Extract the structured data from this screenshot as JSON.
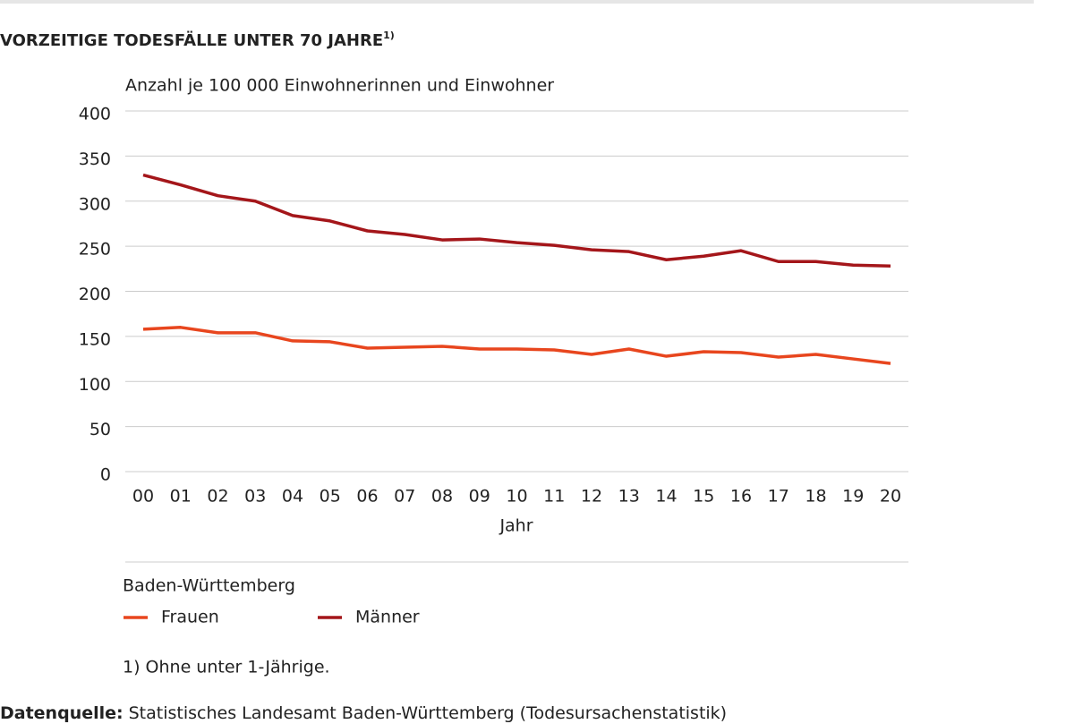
{
  "chart_data": {
    "type": "line",
    "title": "VORZEITIGE TODESFÄLLE UNTER 70 JAHRE",
    "title_note": "1)",
    "y_label": "Anzahl je 100 000 Einwohnerinnen und Einwohner",
    "x_label": "Jahr",
    "categories": [
      "00",
      "01",
      "02",
      "03",
      "04",
      "05",
      "06",
      "07",
      "08",
      "09",
      "10",
      "11",
      "12",
      "13",
      "14",
      "15",
      "16",
      "17",
      "18",
      "19",
      "20"
    ],
    "series": [
      {
        "name": "Frauen",
        "color": "#e8461e",
        "values": [
          158,
          160,
          154,
          154,
          145,
          144,
          137,
          138,
          139,
          136,
          136,
          135,
          130,
          136,
          128,
          133,
          132,
          127,
          130,
          125,
          120
        ]
      },
      {
        "name": "Männer",
        "color": "#a4161a",
        "values": [
          329,
          318,
          306,
          300,
          284,
          278,
          267,
          263,
          257,
          258,
          254,
          251,
          246,
          244,
          235,
          239,
          245,
          233,
          233,
          229,
          228
        ]
      }
    ],
    "ylim": [
      0,
      400
    ],
    "yticks": [
      0,
      50,
      100,
      150,
      200,
      250,
      300,
      350,
      400
    ],
    "grid": true,
    "legend_title": "Baden-Württemberg",
    "footnote": "1) Ohne unter 1-Jährige.",
    "source_label": "Datenquelle:",
    "source": "Statistisches Landesamt Baden-Württemberg (Todesursachenstatistik)"
  }
}
